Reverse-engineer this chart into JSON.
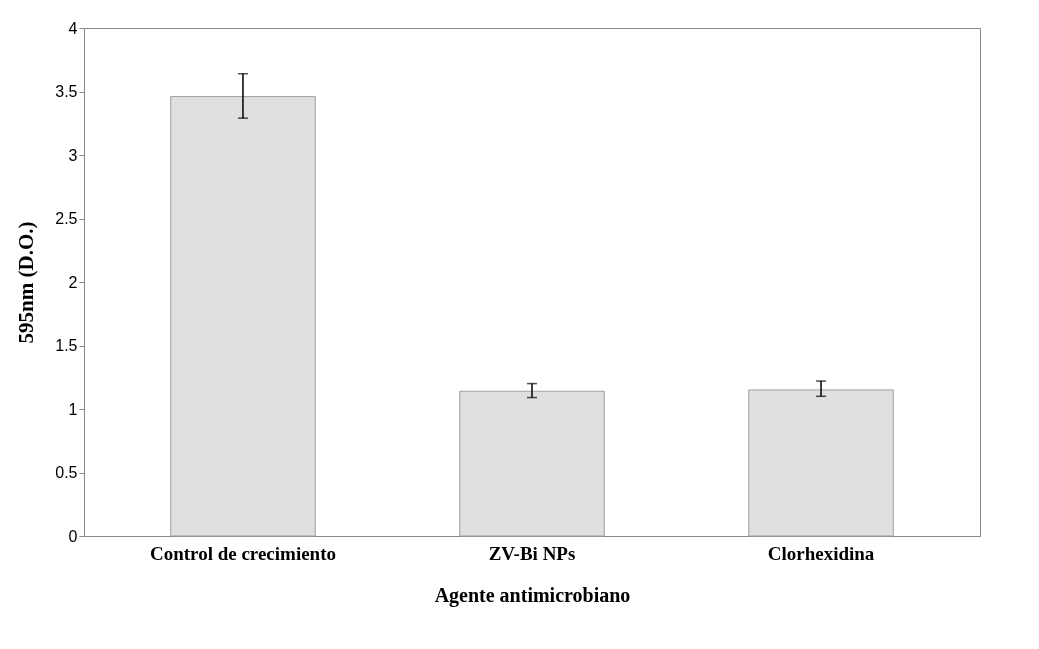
{
  "chart_data": {
    "type": "bar",
    "xlabel": "Agente antimicrobiano",
    "ylabel": "595nm (D.O.)",
    "categories": [
      "Control de crecimiento",
      "ZV-Bi NPs",
      "Clorhexidina"
    ],
    "values": [
      3.46,
      1.14,
      1.15
    ],
    "errors": [
      [
        3.29,
        3.64
      ],
      [
        1.09,
        1.2
      ],
      [
        1.1,
        1.22
      ]
    ],
    "color": "#e0e0e0",
    "ylim": [
      0,
      4
    ],
    "yticks": [
      0,
      0.5,
      1,
      1.5,
      2,
      2.5,
      3,
      3.5,
      4
    ],
    "grid": false
  }
}
